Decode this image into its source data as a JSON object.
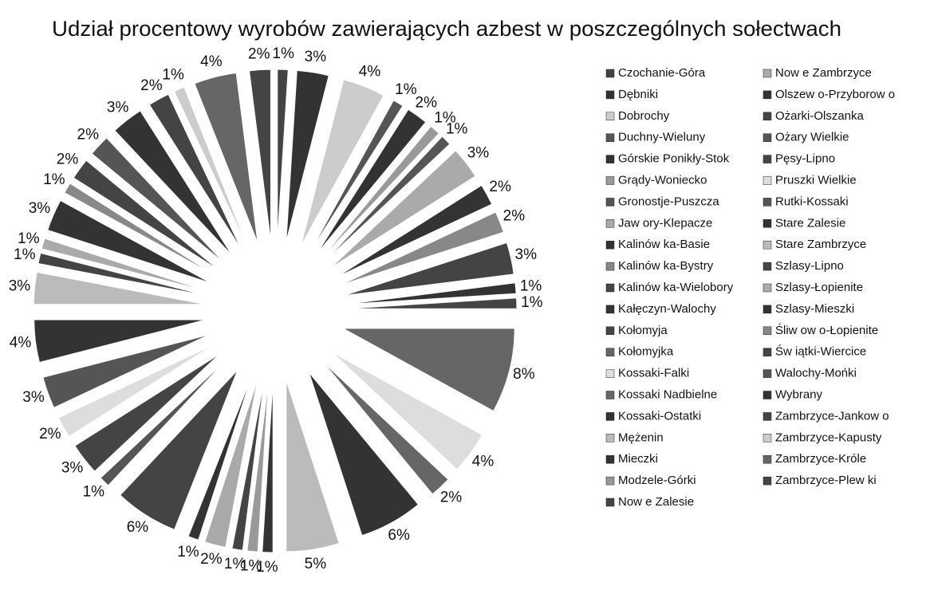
{
  "chart_data": {
    "type": "pie",
    "title": "Udział procentowy wyrobów zawierających azbest w poszczególnych sołectwach",
    "categories": [
      "Czochanie-Góra",
      "Dębniki",
      "Dobrochy",
      "Duchny-Wieluny",
      "Górskie Ponikły-Stok",
      "Grądy-Woniecko",
      "Gronostje-Puszcza",
      "Jaw ory-Klepacze",
      "Kalinów ka-Basie",
      "Kalinów ka-Bystry",
      "Kalinów ka-Wielobory",
      "Kałęczyn-Walochy",
      "Kołomyja",
      "Kołomyjka",
      "Kossaki-Falki",
      "Kossaki Nadbielne",
      "Kossaki-Ostatki",
      "Mężenin",
      "Mieczki",
      "Modzele-Górki",
      "Now e Zalesie",
      "Now e Zambrzyce",
      "Olszew o-Przyborow o",
      "Ożarki-Olszanka",
      "Ożary Wielkie",
      "Pęsy-Lipno",
      "Pruszki Wielkie",
      "Rutki-Kossaki",
      "Stare Zalesie",
      "Stare Zambrzyce",
      "Szlasy-Lipno",
      "Szlasy-Łopienite",
      "Szlasy-Mieszki",
      "Śliw ow o-Łopienite",
      "Św iątki-Wiercice",
      "Walochy-Mońki",
      "Wybrany",
      "Zambrzyce-Jankow o",
      "Zambrzyce-Kapusty",
      "Zambrzyce-Króle",
      "Zambrzyce-Plew ki"
    ],
    "values": [
      1,
      3,
      4,
      1,
      2,
      1,
      1,
      3,
      2,
      2,
      3,
      1,
      1,
      8,
      4,
      2,
      6,
      5,
      1,
      1,
      1,
      2,
      1,
      6,
      1,
      3,
      2,
      3,
      4,
      3,
      1,
      1,
      3,
      1,
      2,
      2,
      3,
      2,
      1,
      4,
      2
    ],
    "value_labels": [
      "1%",
      "3%",
      "4%",
      "1%",
      "2%",
      "1%",
      "1%",
      "3%",
      "2%",
      "2%",
      "3%",
      "1%",
      "1%",
      "8%",
      "4%",
      "2%",
      "6%",
      "5%",
      "1%",
      "1%",
      "1%",
      "2%",
      "1%",
      "6%",
      "1%",
      "3%",
      "2%",
      "3%",
      "4%",
      "3%",
      "1%",
      "1%",
      "3%",
      "1%",
      "2%",
      "2%",
      "3%",
      "2%",
      "1%",
      "4%",
      "2%"
    ],
    "colors": [
      "#444",
      "#333",
      "#ccc",
      "#555",
      "#333",
      "#999",
      "#555",
      "#aaa",
      "#333",
      "#888",
      "#444",
      "#333",
      "#444",
      "#666",
      "#ddd",
      "#666",
      "#333",
      "#bbb",
      "#333",
      "#999",
      "#444",
      "#aaa",
      "#333",
      "#444",
      "#555",
      "#444",
      "#ddd",
      "#555",
      "#333",
      "#bbb",
      "#444",
      "#aaa",
      "#333",
      "#888",
      "#444",
      "#555",
      "#333",
      "#444",
      "#ccc",
      "#666",
      "#444"
    ]
  }
}
